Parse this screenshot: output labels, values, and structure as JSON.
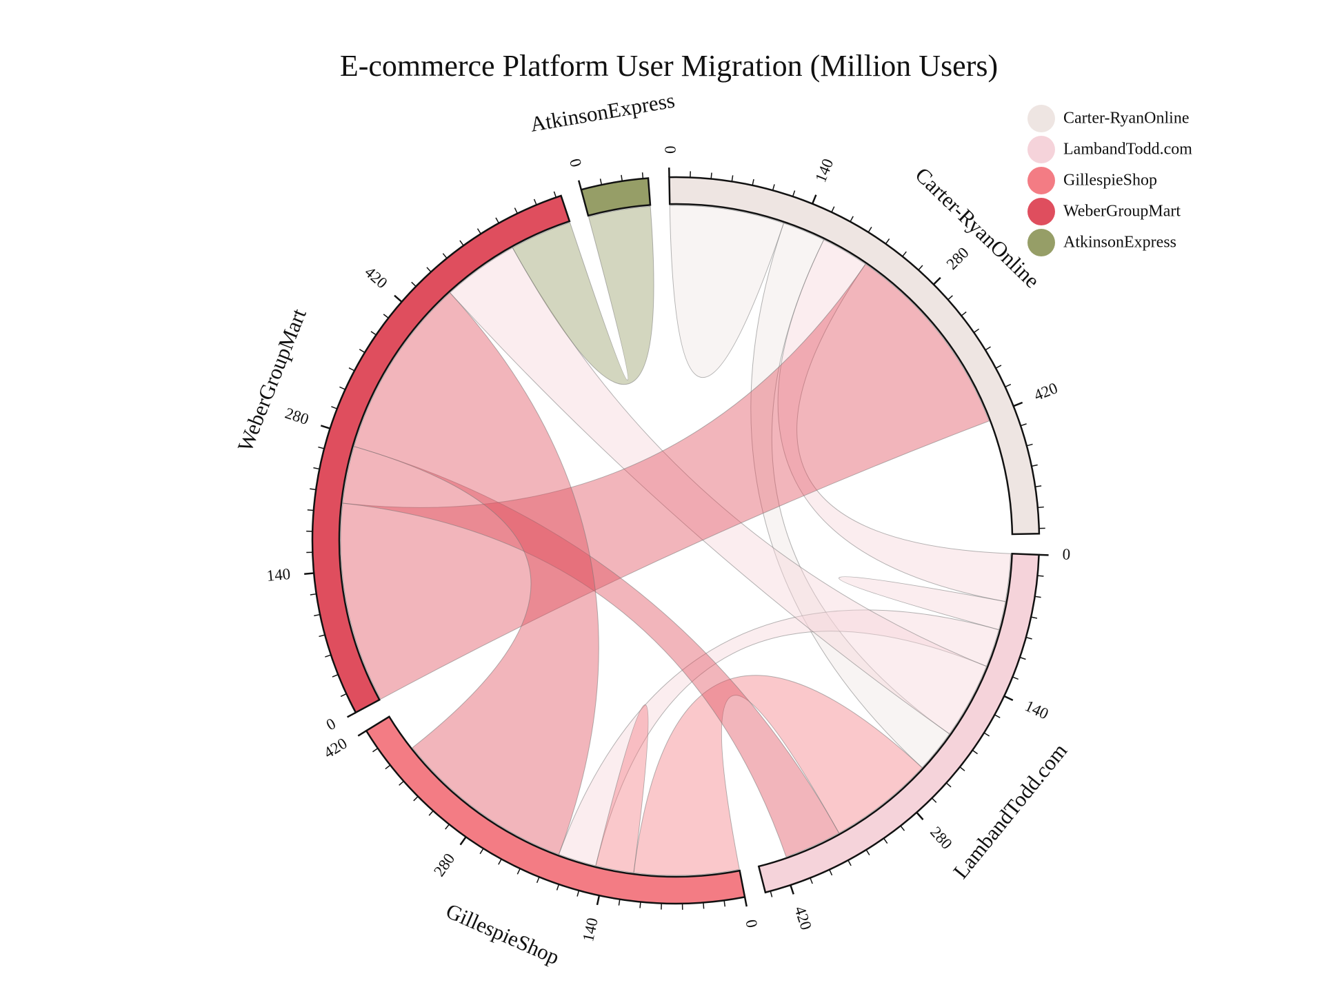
{
  "chart_data": {
    "type": "chord",
    "title": "E-commerce Platform User Migration (Million Users)",
    "legend_position": "top-right",
    "groups": [
      {
        "name": "Carter-RyanOnline",
        "color": "#EEE5E2"
      },
      {
        "name": "LambandTodd.com",
        "color": "#F5D3DA"
      },
      {
        "name": "GillespieShop",
        "color": "#F37C84"
      },
      {
        "name": "WeberGroupMart",
        "color": "#DF4E5E"
      },
      {
        "name": "AtkinsonExpress",
        "color": "#969E67"
      }
    ],
    "tick_labels": [
      "0",
      "140",
      "280",
      "420"
    ],
    "matrix": [
      [
        120,
        45,
        0,
        0,
        0
      ],
      [
        50,
        30,
        40,
        80,
        0
      ],
      [
        0,
        110,
        40,
        0,
        0
      ],
      [
        210,
        60,
        190,
        0,
        0
      ],
      [
        0,
        0,
        0,
        65,
        0
      ]
    ]
  }
}
